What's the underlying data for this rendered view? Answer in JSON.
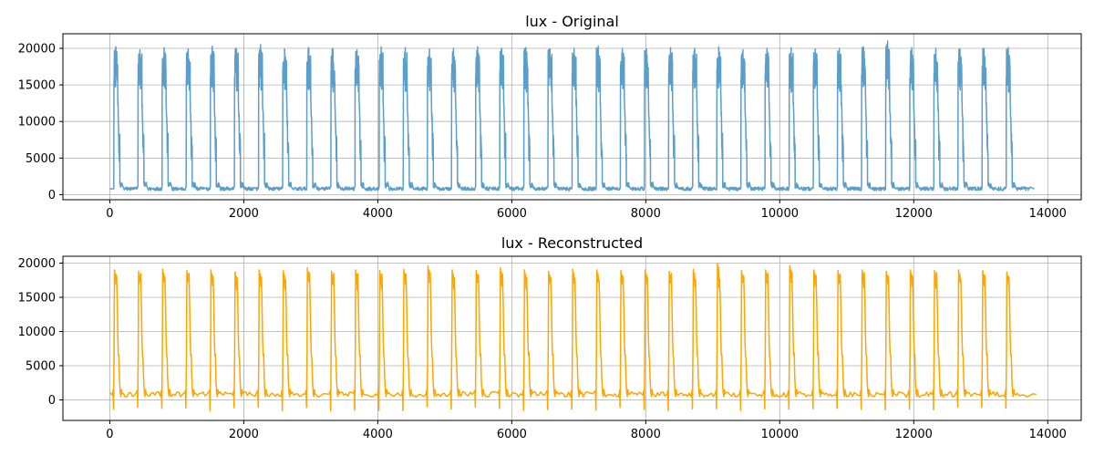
{
  "chart_data": [
    {
      "type": "line",
      "title": "lux - Original",
      "xlabel": "",
      "ylabel": "",
      "xlim": [
        -700,
        14500
      ],
      "ylim": [
        -700,
        22000
      ],
      "xticks": [
        0,
        2000,
        4000,
        6000,
        8000,
        10000,
        12000,
        14000
      ],
      "yticks": [
        0,
        5000,
        10000,
        15000,
        20000
      ],
      "grid": true,
      "color": "#5a9ec9",
      "cycle": {
        "count": 38,
        "start_x": 60,
        "period": 360,
        "end_x": 13800,
        "baseline": 800,
        "day_peak_range": [
          18000,
          21000
        ],
        "secondary_level": 7500
      },
      "peaks": [
        20200,
        19800,
        20100,
        19900,
        20300,
        20000,
        20500,
        19900,
        20100,
        20000,
        19800,
        20200,
        20100,
        19900,
        20000,
        20200,
        20000,
        20100,
        19900,
        20000,
        20300,
        20000,
        19900,
        20100,
        20000,
        20200,
        19800,
        20000,
        20100,
        19900,
        20000,
        20200,
        21000,
        20100,
        20000,
        19900,
        20000,
        20100
      ]
    },
    {
      "type": "line",
      "title": "lux - Reconstructed",
      "xlabel": "",
      "ylabel": "",
      "xlim": [
        -700,
        14500
      ],
      "ylim": [
        -3000,
        21000
      ],
      "xticks": [
        0,
        2000,
        4000,
        6000,
        8000,
        10000,
        12000,
        14000
      ],
      "yticks": [
        0,
        5000,
        10000,
        15000,
        20000
      ],
      "grid": true,
      "color": "#ffa500",
      "cycle": {
        "count": 38,
        "start_x": 60,
        "period": 360,
        "end_x": 13800,
        "baseline": 800,
        "min_dip": -1600,
        "secondary_level": 6500
      },
      "peaks": [
        19000,
        18800,
        19100,
        18900,
        19000,
        18700,
        19000,
        18900,
        19300,
        18800,
        19000,
        18900,
        19100,
        19600,
        19000,
        18900,
        19300,
        19000,
        18800,
        19100,
        19000,
        18900,
        19000,
        18800,
        19100,
        20000,
        18900,
        19000,
        19600,
        19000,
        18900,
        19000,
        18800,
        19000,
        18900,
        19000,
        18900,
        18700
      ]
    }
  ]
}
